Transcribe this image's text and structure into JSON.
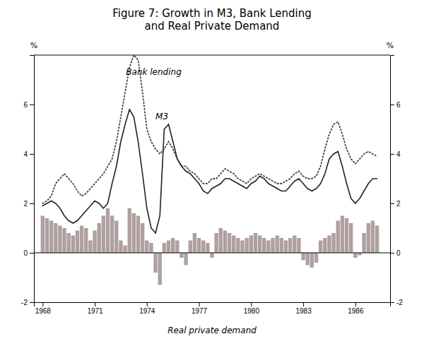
{
  "chart_data": {
    "type": "bar",
    "title": "Figure 7: Growth in M3, Bank Lending\nand Real Private Demand",
    "ylabel": "%",
    "y2label": "%",
    "xlim": [
      1967.5,
      1988.0
    ],
    "xticks": [
      1968,
      1971,
      1974,
      1977,
      1980,
      1983,
      1986
    ],
    "ylim": [
      -2,
      8
    ],
    "yticks": [
      -2,
      0,
      2,
      4,
      6
    ],
    "y2lim": [
      -2,
      8
    ],
    "y2ticks": [
      -2,
      0,
      2,
      4,
      6
    ],
    "grid": false,
    "x": [
      1968.0,
      1968.25,
      1968.5,
      1968.75,
      1969.0,
      1969.25,
      1969.5,
      1969.75,
      1970.0,
      1970.25,
      1970.5,
      1970.75,
      1971.0,
      1971.25,
      1971.5,
      1971.75,
      1972.0,
      1972.25,
      1972.5,
      1972.75,
      1973.0,
      1973.25,
      1973.5,
      1973.75,
      1974.0,
      1974.25,
      1974.5,
      1974.75,
      1975.0,
      1975.25,
      1975.5,
      1975.75,
      1976.0,
      1976.25,
      1976.5,
      1976.75,
      1977.0,
      1977.25,
      1977.5,
      1977.75,
      1978.0,
      1978.25,
      1978.5,
      1978.75,
      1979.0,
      1979.25,
      1979.5,
      1979.75,
      1980.0,
      1980.25,
      1980.5,
      1980.75,
      1981.0,
      1981.25,
      1981.5,
      1981.75,
      1982.0,
      1982.25,
      1982.5,
      1982.75,
      1983.0,
      1983.25,
      1983.5,
      1983.75,
      1984.0,
      1984.25,
      1984.5,
      1984.75,
      1985.0,
      1985.25,
      1985.5,
      1985.75,
      1986.0,
      1986.25,
      1986.5,
      1986.75,
      1987.0,
      1987.25
    ],
    "series": [
      {
        "name": "Real private demand",
        "type": "bar",
        "color": "#b0a0a0",
        "values": [
          1.5,
          1.4,
          1.3,
          1.2,
          1.1,
          1.0,
          0.8,
          0.7,
          0.9,
          1.1,
          1.0,
          0.5,
          0.9,
          1.2,
          1.5,
          1.8,
          1.5,
          1.3,
          0.5,
          0.3,
          1.8,
          1.6,
          1.5,
          1.2,
          0.5,
          0.4,
          -0.8,
          -1.3,
          0.4,
          0.5,
          0.6,
          0.5,
          -0.2,
          -0.5,
          0.5,
          0.8,
          0.6,
          0.5,
          0.4,
          -0.2,
          0.8,
          1.0,
          0.9,
          0.8,
          0.7,
          0.6,
          0.5,
          0.6,
          0.7,
          0.8,
          0.7,
          0.6,
          0.5,
          0.6,
          0.7,
          0.6,
          0.5,
          0.6,
          0.7,
          0.6,
          -0.3,
          -0.5,
          -0.6,
          -0.4,
          0.5,
          0.6,
          0.7,
          0.8,
          1.3,
          1.5,
          1.4,
          1.2,
          -0.2,
          -0.1,
          0.8,
          1.2,
          1.3,
          1.1
        ]
      },
      {
        "type": "line",
        "color": "#222222",
        "line_style": "solid",
        "values": [
          1.9,
          2.0,
          2.1,
          2.0,
          1.8,
          1.5,
          1.3,
          1.2,
          1.3,
          1.5,
          1.7,
          1.9,
          2.1,
          2.0,
          1.8,
          2.0,
          2.8,
          3.5,
          4.5,
          5.2,
          5.8,
          5.5,
          4.5,
          3.2,
          1.8,
          1.0,
          0.8,
          1.5,
          5.0,
          5.2,
          4.5,
          3.8,
          3.5,
          3.3,
          3.2,
          3.0,
          2.8,
          2.5,
          2.4,
          2.6,
          2.7,
          2.8,
          3.0,
          3.0,
          2.9,
          2.8,
          2.7,
          2.6,
          2.8,
          2.9,
          3.1,
          3.0,
          2.8,
          2.7,
          2.6,
          2.5,
          2.5,
          2.7,
          2.9,
          3.0,
          2.8,
          2.6,
          2.5,
          2.6,
          2.8,
          3.2,
          3.8,
          4.0,
          4.1,
          3.5,
          2.8,
          2.2,
          2.0,
          2.2,
          2.5,
          2.8,
          3.0,
          3.0
        ]
      },
      {
        "type": "line",
        "color": "#444444",
        "line_style": "dotted",
        "values": [
          2.0,
          2.1,
          2.3,
          2.8,
          3.0,
          3.2,
          3.0,
          2.8,
          2.5,
          2.3,
          2.4,
          2.6,
          2.8,
          3.0,
          3.2,
          3.5,
          3.8,
          4.5,
          5.5,
          6.5,
          7.5,
          8.0,
          7.8,
          6.5,
          5.0,
          4.5,
          4.2,
          4.0,
          4.2,
          4.5,
          4.2,
          3.8,
          3.5,
          3.5,
          3.3,
          3.2,
          3.0,
          2.8,
          2.8,
          3.0,
          3.0,
          3.2,
          3.4,
          3.3,
          3.2,
          3.0,
          2.9,
          2.8,
          3.0,
          3.1,
          3.2,
          3.1,
          3.0,
          2.9,
          2.8,
          2.8,
          2.9,
          3.0,
          3.2,
          3.3,
          3.1,
          3.0,
          3.0,
          3.1,
          3.5,
          4.2,
          4.8,
          5.2,
          5.3,
          4.8,
          4.2,
          3.8,
          3.6,
          3.8,
          4.0,
          4.1,
          4.0,
          3.9
        ]
      }
    ],
    "annotations": [
      {
        "text": "M3",
        "x": 1974.5,
        "y": 5.4
      },
      {
        "text": "Bank lending",
        "x": 1972.8,
        "y": 7.2
      }
    ]
  }
}
